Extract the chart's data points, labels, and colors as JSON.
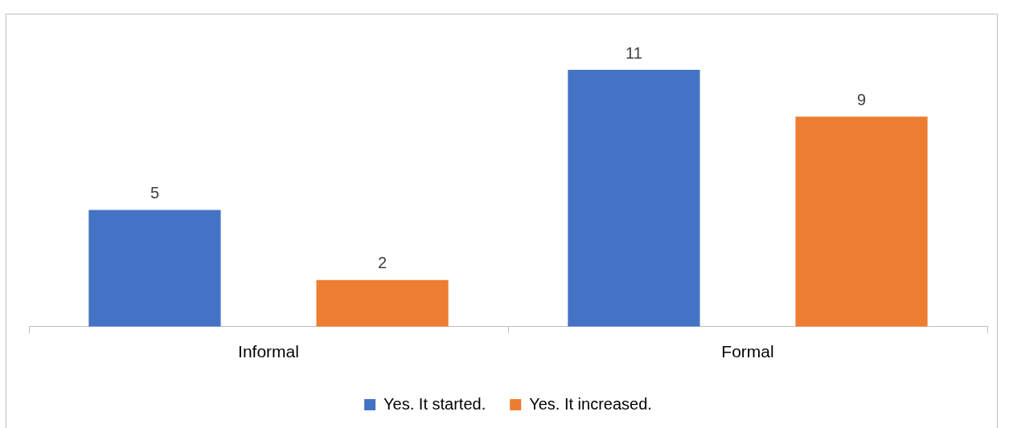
{
  "chart_data": {
    "type": "bar",
    "categories": [
      "Informal",
      "Formal"
    ],
    "series": [
      {
        "name": "Yes. It started.",
        "color": "#4472c4",
        "values": [
          5,
          11
        ]
      },
      {
        "name": "Yes. It increased.",
        "color": "#ed7d31",
        "values": [
          2,
          9
        ]
      }
    ],
    "data_labels": true,
    "grid": false,
    "legend": "bottom"
  }
}
